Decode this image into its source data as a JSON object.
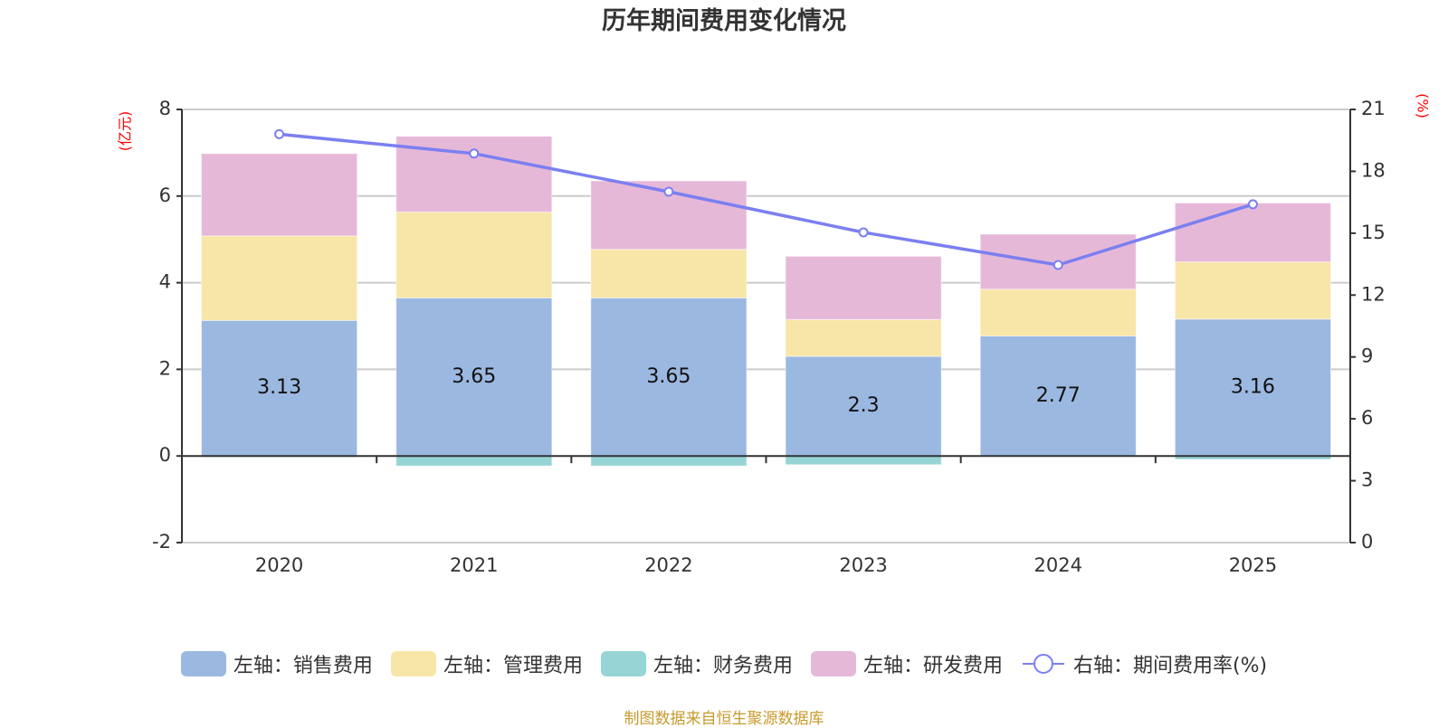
{
  "chart_data": {
    "type": "bar",
    "title": "历年期间费用变化情况",
    "categories": [
      "2020",
      "2021",
      "2022",
      "2023",
      "2024",
      "2025"
    ],
    "left_axis": {
      "label": "(亿元)",
      "ylim": [
        -2,
        8
      ],
      "ticks": [
        -2,
        0,
        2,
        4,
        6,
        8
      ]
    },
    "right_axis": {
      "label": "(%)",
      "ylim": [
        0,
        21
      ],
      "ticks": [
        0,
        3,
        6,
        9,
        12,
        15,
        18,
        21
      ]
    },
    "grid": true,
    "legend_position": "bottom",
    "series": [
      {
        "name": "左轴：销售费用",
        "type": "bar",
        "axis": "left",
        "color": "#9bb8e1",
        "values": [
          3.13,
          3.65,
          3.65,
          2.3,
          2.77,
          3.16
        ],
        "show_labels": true
      },
      {
        "name": "左轴：管理费用",
        "type": "bar",
        "axis": "left",
        "color": "#f8e6a8",
        "values": [
          1.95,
          1.98,
          1.12,
          0.85,
          1.08,
          1.32
        ]
      },
      {
        "name": "左轴：财务费用",
        "type": "bar",
        "axis": "left",
        "color": "#96d4d5",
        "values": [
          -0.03,
          -0.23,
          -0.23,
          -0.2,
          -0.01,
          -0.08
        ]
      },
      {
        "name": "左轴：研发费用",
        "type": "bar",
        "axis": "left",
        "color": "#e6b8d8",
        "values": [
          1.9,
          1.75,
          1.58,
          1.46,
          1.27,
          1.36
        ]
      },
      {
        "name": "右轴：期间费用率(%)",
        "type": "line",
        "axis": "right",
        "color": "#7b7ff0",
        "values": [
          19.8,
          18.86,
          17.01,
          15.04,
          13.46,
          16.4
        ]
      }
    ]
  },
  "footer": "制图数据来自恒生聚源数据库"
}
